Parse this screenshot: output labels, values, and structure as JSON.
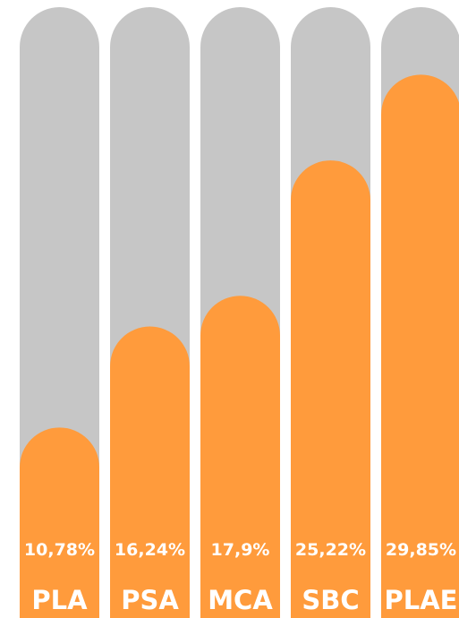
{
  "chart_data": {
    "type": "bar",
    "categories": [
      "PLA",
      "PSA",
      "MCA",
      "SBC",
      "PLAE"
    ],
    "values": [
      10.78,
      16.24,
      17.9,
      25.22,
      29.85
    ],
    "value_labels": [
      "10,78%",
      "16,24%",
      "17,9%",
      "25,22%",
      "29,85%"
    ],
    "ylim": [
      0,
      33.5
    ],
    "grid": false,
    "legend": "none",
    "colors": {
      "track": "#c6c6c6",
      "bar": "#ff9b3c",
      "label": "#ffffff",
      "background": "#ffffff"
    }
  }
}
